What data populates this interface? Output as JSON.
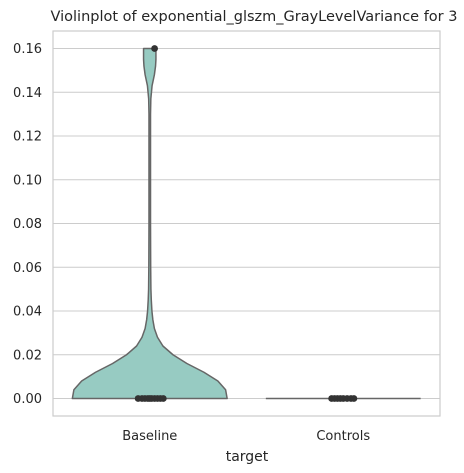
{
  "chart_data": {
    "type": "violin",
    "title": "Violinplot of exponential_glszm_GrayLevelVariance for 3",
    "xlabel": "target",
    "ylabel": "",
    "categories": [
      "Baseline",
      "Controls"
    ],
    "ylim": [
      -0.008,
      0.168
    ],
    "yticks": [
      0.0,
      0.02,
      0.04,
      0.06,
      0.08,
      0.1,
      0.12,
      0.14,
      0.16
    ],
    "ytick_labels": [
      "0.00",
      "0.02",
      "0.04",
      "0.06",
      "0.08",
      "0.10",
      "0.12",
      "0.14",
      "0.16"
    ],
    "grid": "horizontal",
    "violin_color": "#97cbc2",
    "edge_color": "#666666",
    "point_color": "#333333",
    "violins": [
      {
        "category": "Baseline",
        "range": [
          0.0,
          0.16
        ],
        "density": [
          [
            0.0,
            1.0
          ],
          [
            0.004,
            0.98
          ],
          [
            0.008,
            0.88
          ],
          [
            0.012,
            0.7
          ],
          [
            0.016,
            0.48
          ],
          [
            0.02,
            0.3
          ],
          [
            0.024,
            0.17
          ],
          [
            0.028,
            0.1
          ],
          [
            0.032,
            0.06
          ],
          [
            0.036,
            0.04
          ],
          [
            0.04,
            0.028
          ],
          [
            0.045,
            0.02
          ],
          [
            0.05,
            0.015
          ],
          [
            0.06,
            0.012
          ],
          [
            0.08,
            0.01
          ],
          [
            0.1,
            0.01
          ],
          [
            0.12,
            0.01
          ],
          [
            0.13,
            0.01
          ],
          [
            0.137,
            0.014
          ],
          [
            0.143,
            0.03
          ],
          [
            0.148,
            0.06
          ],
          [
            0.152,
            0.075
          ],
          [
            0.155,
            0.08
          ],
          [
            0.16,
            0.08
          ]
        ],
        "points": [
          0.0,
          0.0,
          0.0,
          0.0,
          0.0,
          0.0,
          0.0,
          0.0,
          0.0,
          0.0,
          0.16
        ],
        "point_offsets": [
          -0.12,
          -0.08,
          -0.05,
          -0.02,
          0.0,
          0.02,
          0.05,
          0.08,
          0.11,
          0.14,
          0.05
        ]
      },
      {
        "category": "Controls",
        "range": [
          0.0,
          0.0
        ],
        "density": [
          [
            0.0,
            1.0
          ]
        ],
        "points": [
          0.0,
          0.0,
          0.0,
          0.0,
          0.0,
          0.0,
          0.0,
          0.0
        ],
        "point_offsets": [
          -0.12,
          -0.09,
          -0.06,
          -0.03,
          0.0,
          0.04,
          0.08,
          0.11
        ]
      }
    ]
  }
}
